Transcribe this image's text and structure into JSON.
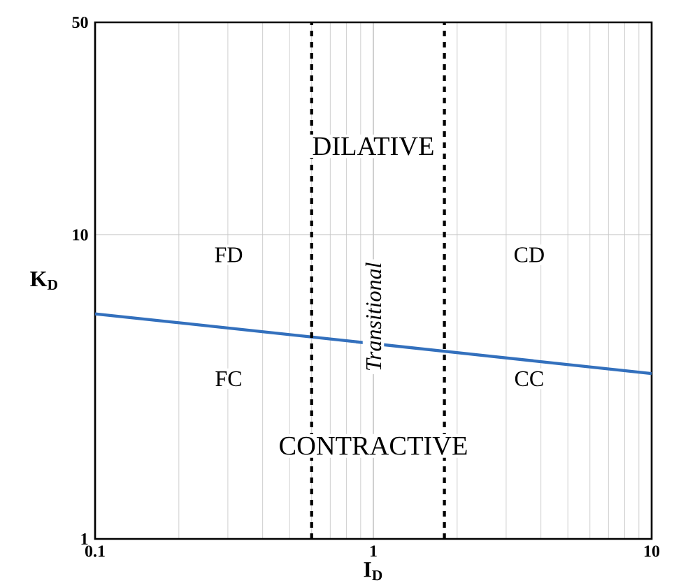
{
  "chart_data": {
    "type": "line",
    "xlabel": "I$_{D}$",
    "ylabel": "K$_{D}$",
    "x": [
      0.1,
      10
    ],
    "series": [
      {
        "color": "#3370bd",
        "values": [
          5.5,
          3.5
        ]
      }
    ],
    "log": "xy",
    "grid": true,
    "marker": "none",
    "line_style": "solid",
    "xlim": [
      0.1,
      10
    ],
    "ylim": [
      1,
      50
    ],
    "xticks": [
      0.1,
      1,
      10
    ],
    "yticks": [
      1,
      10,
      50
    ],
    "ref_lines": [
      {
        "axis": "x",
        "value": 0.6,
        "color": "#000000",
        "line_style": "dashed"
      },
      {
        "axis": "x",
        "value": 1.8,
        "color": "#000000",
        "line_style": "dashed"
      }
    ],
    "annotations": [
      "DILATIVE",
      "FD",
      "CD",
      "Transitional",
      "FC",
      "CC",
      "CONTRACTIVE"
    ]
  }
}
